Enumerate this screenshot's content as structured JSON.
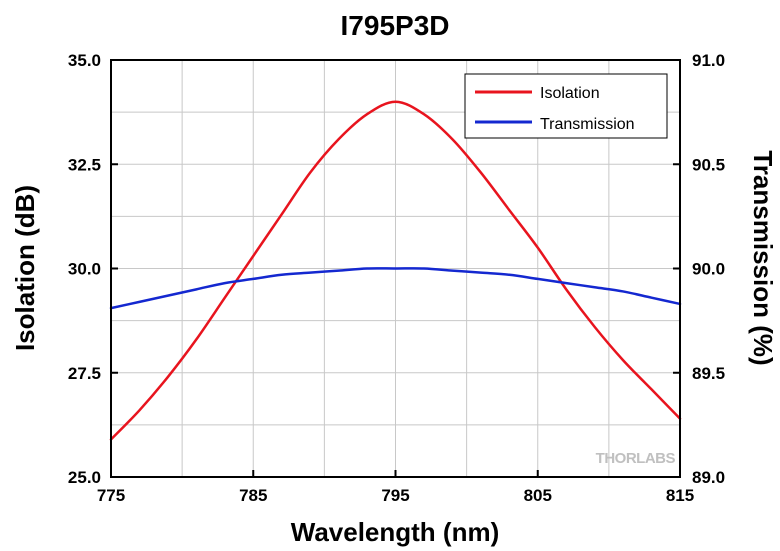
{
  "chart_data": {
    "type": "line",
    "title": "I795P3D",
    "xlabel": "Wavelength (nm)",
    "ylabel_left": "Isolation (dB)",
    "ylabel_right": "Transmission (%)",
    "xlim": [
      775,
      815
    ],
    "ylim_left": [
      25.0,
      35.0
    ],
    "ylim_right": [
      89.0,
      91.0
    ],
    "x_ticks": [
      "775",
      "785",
      "795",
      "805",
      "815"
    ],
    "y_left_ticks": [
      "25.0",
      "27.5",
      "30.0",
      "32.5",
      "35.0"
    ],
    "y_right_ticks": [
      "89.0",
      "89.5",
      "90.0",
      "90.5",
      "91.0"
    ],
    "x_tick_values": [
      775,
      785,
      795,
      805,
      815
    ],
    "y_left_tick_values": [
      25.0,
      27.5,
      30.0,
      32.5,
      35.0
    ],
    "y_right_tick_values": [
      89.0,
      89.5,
      90.0,
      90.5,
      91.0
    ],
    "grid": true,
    "legend_position": "top-right",
    "watermark": "THORLABS",
    "series": [
      {
        "name": "Isolation",
        "axis": "left",
        "color": "#e8141e",
        "x": [
          775,
          777,
          779,
          781,
          783,
          785,
          787,
          789,
          791,
          793,
          795,
          797,
          799,
          801,
          803,
          805,
          807,
          809,
          811,
          813,
          815
        ],
        "values": [
          25.9,
          26.6,
          27.4,
          28.3,
          29.3,
          30.3,
          31.3,
          32.3,
          33.1,
          33.7,
          34.0,
          33.7,
          33.1,
          32.3,
          31.4,
          30.5,
          29.5,
          28.6,
          27.8,
          27.1,
          26.4
        ]
      },
      {
        "name": "Transmission",
        "axis": "right",
        "color": "#1428d0",
        "x": [
          775,
          777,
          779,
          781,
          783,
          785,
          787,
          789,
          791,
          793,
          795,
          797,
          799,
          801,
          803,
          805,
          807,
          809,
          811,
          813,
          815
        ],
        "values": [
          89.81,
          89.84,
          89.87,
          89.9,
          89.93,
          89.95,
          89.97,
          89.98,
          89.99,
          90.0,
          90.0,
          90.0,
          89.99,
          89.98,
          89.97,
          89.95,
          89.93,
          89.91,
          89.89,
          89.86,
          89.83
        ]
      }
    ]
  }
}
